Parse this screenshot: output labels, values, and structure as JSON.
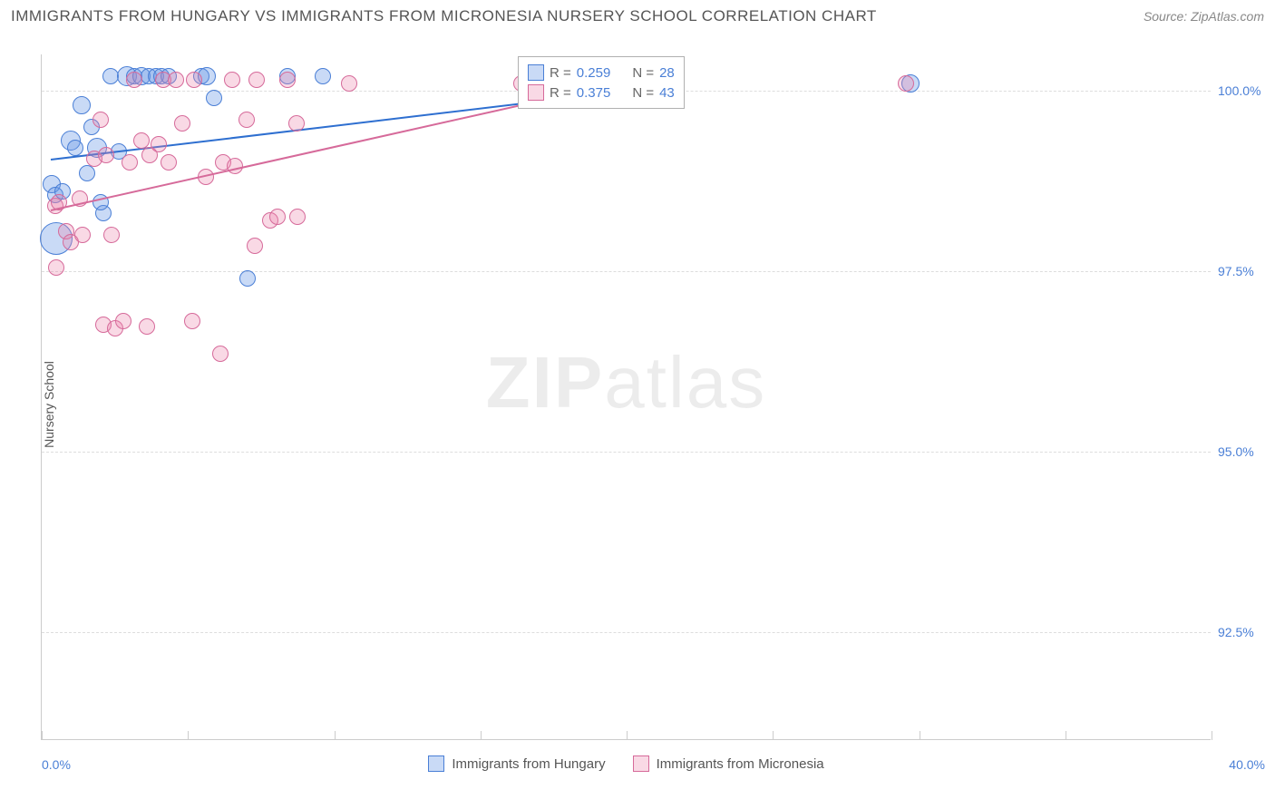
{
  "header": {
    "title": "IMMIGRANTS FROM HUNGARY VS IMMIGRANTS FROM MICRONESIA NURSERY SCHOOL CORRELATION CHART",
    "source_prefix": "Source: ",
    "source_name": "ZipAtlas.com"
  },
  "chart": {
    "type": "scatter",
    "ylabel": "Nursery School",
    "watermark_bold": "ZIP",
    "watermark_rest": "atlas",
    "xlim": [
      0,
      40
    ],
    "ylim": [
      91,
      100.5
    ],
    "xticks": [
      {
        "pos": 0.0,
        "label": "0.0%"
      },
      {
        "pos": 40.0,
        "label": "40.0%"
      }
    ],
    "xtick_marks": [
      0,
      5,
      10,
      15,
      20,
      25,
      30,
      35,
      40
    ],
    "yticks": [
      {
        "pos": 100.0,
        "label": "100.0%"
      },
      {
        "pos": 97.5,
        "label": "97.5%"
      },
      {
        "pos": 95.0,
        "label": "95.0%"
      },
      {
        "pos": 92.5,
        "label": "92.5%"
      }
    ],
    "background_color": "#ffffff",
    "grid_color": "#dddddd",
    "series": [
      {
        "name": "Immigrants from Hungary",
        "fill": "rgba(100,150,230,0.35)",
        "stroke": "#4a7fd6",
        "trend_color": "#2e6fd0",
        "trend": {
          "x1": 0.3,
          "y1": 99.05,
          "x2": 20.0,
          "y2": 100.0
        },
        "r": 0.259,
        "n": 28,
        "points": [
          {
            "x": 0.5,
            "y": 97.95,
            "r": 18
          },
          {
            "x": 0.35,
            "y": 98.7,
            "r": 10
          },
          {
            "x": 0.45,
            "y": 98.55,
            "r": 9
          },
          {
            "x": 0.7,
            "y": 98.6,
            "r": 9
          },
          {
            "x": 1.0,
            "y": 99.3,
            "r": 11
          },
          {
            "x": 1.15,
            "y": 99.2,
            "r": 9
          },
          {
            "x": 1.55,
            "y": 98.85,
            "r": 9
          },
          {
            "x": 1.35,
            "y": 99.8,
            "r": 10
          },
          {
            "x": 1.7,
            "y": 99.5,
            "r": 9
          },
          {
            "x": 1.9,
            "y": 99.2,
            "r": 11
          },
          {
            "x": 2.1,
            "y": 98.3,
            "r": 9
          },
          {
            "x": 2.35,
            "y": 100.2,
            "r": 9
          },
          {
            "x": 2.65,
            "y": 99.15,
            "r": 9
          },
          {
            "x": 2.9,
            "y": 100.2,
            "r": 11
          },
          {
            "x": 3.15,
            "y": 100.2,
            "r": 9
          },
          {
            "x": 3.4,
            "y": 100.2,
            "r": 10
          },
          {
            "x": 3.65,
            "y": 100.2,
            "r": 9
          },
          {
            "x": 3.9,
            "y": 100.2,
            "r": 9
          },
          {
            "x": 4.1,
            "y": 100.2,
            "r": 9
          },
          {
            "x": 4.35,
            "y": 100.2,
            "r": 9
          },
          {
            "x": 5.45,
            "y": 100.2,
            "r": 9
          },
          {
            "x": 5.65,
            "y": 100.2,
            "r": 10
          },
          {
            "x": 5.9,
            "y": 99.9,
            "r": 9
          },
          {
            "x": 7.05,
            "y": 97.4,
            "r": 9
          },
          {
            "x": 8.4,
            "y": 100.2,
            "r": 9
          },
          {
            "x": 9.6,
            "y": 100.2,
            "r": 9
          },
          {
            "x": 29.7,
            "y": 100.1,
            "r": 10
          },
          {
            "x": 2.0,
            "y": 98.45,
            "r": 9
          }
        ]
      },
      {
        "name": "Immigrants from Micronesia",
        "fill": "rgba(235,130,170,0.30)",
        "stroke": "#d66a9a",
        "trend_color": "#d66a9a",
        "trend": {
          "x1": 0.3,
          "y1": 98.35,
          "x2": 18.5,
          "y2": 100.0
        },
        "r": 0.375,
        "n": 43,
        "points": [
          {
            "x": 0.5,
            "y": 97.55,
            "r": 9
          },
          {
            "x": 0.45,
            "y": 98.4,
            "r": 9
          },
          {
            "x": 0.6,
            "y": 98.45,
            "r": 9
          },
          {
            "x": 0.85,
            "y": 98.05,
            "r": 9
          },
          {
            "x": 1.0,
            "y": 97.9,
            "r": 9
          },
          {
            "x": 1.3,
            "y": 98.5,
            "r": 9
          },
          {
            "x": 1.4,
            "y": 98.0,
            "r": 9
          },
          {
            "x": 1.8,
            "y": 99.05,
            "r": 9
          },
          {
            "x": 2.0,
            "y": 99.6,
            "r": 9
          },
          {
            "x": 2.2,
            "y": 99.1,
            "r": 9
          },
          {
            "x": 2.1,
            "y": 96.75,
            "r": 9
          },
          {
            "x": 2.4,
            "y": 98.0,
            "r": 9
          },
          {
            "x": 2.5,
            "y": 96.7,
            "r": 9
          },
          {
            "x": 2.8,
            "y": 96.8,
            "r": 9
          },
          {
            "x": 3.0,
            "y": 99.0,
            "r": 9
          },
          {
            "x": 3.15,
            "y": 100.15,
            "r": 9
          },
          {
            "x": 3.4,
            "y": 99.3,
            "r": 9
          },
          {
            "x": 3.6,
            "y": 96.73,
            "r": 9
          },
          {
            "x": 3.7,
            "y": 99.1,
            "r": 9
          },
          {
            "x": 4.0,
            "y": 99.25,
            "r": 9
          },
          {
            "x": 4.15,
            "y": 100.15,
            "r": 9
          },
          {
            "x": 4.35,
            "y": 99.0,
            "r": 9
          },
          {
            "x": 4.6,
            "y": 100.15,
            "r": 9
          },
          {
            "x": 4.8,
            "y": 99.55,
            "r": 9
          },
          {
            "x": 5.15,
            "y": 96.8,
            "r": 9
          },
          {
            "x": 5.2,
            "y": 100.15,
            "r": 9
          },
          {
            "x": 5.6,
            "y": 98.8,
            "r": 9
          },
          {
            "x": 6.1,
            "y": 96.35,
            "r": 9
          },
          {
            "x": 6.2,
            "y": 99.0,
            "r": 9
          },
          {
            "x": 6.6,
            "y": 98.95,
            "r": 9
          },
          {
            "x": 6.5,
            "y": 100.15,
            "r": 9
          },
          {
            "x": 7.0,
            "y": 99.6,
            "r": 9
          },
          {
            "x": 7.3,
            "y": 97.85,
            "r": 9
          },
          {
            "x": 7.35,
            "y": 100.15,
            "r": 9
          },
          {
            "x": 7.8,
            "y": 98.2,
            "r": 9
          },
          {
            "x": 8.05,
            "y": 98.25,
            "r": 9
          },
          {
            "x": 8.4,
            "y": 100.15,
            "r": 9
          },
          {
            "x": 8.7,
            "y": 99.55,
            "r": 9
          },
          {
            "x": 8.75,
            "y": 98.25,
            "r": 9
          },
          {
            "x": 10.5,
            "y": 100.1,
            "r": 9
          },
          {
            "x": 16.4,
            "y": 100.1,
            "r": 9
          },
          {
            "x": 18.0,
            "y": 100.0,
            "r": 9
          },
          {
            "x": 29.55,
            "y": 100.1,
            "r": 9
          }
        ]
      }
    ],
    "stats_legend": {
      "rows": [
        {
          "color_idx": 0,
          "r_label": "R = ",
          "r_value": "0.259",
          "n_label": "N = ",
          "n_value": "28"
        },
        {
          "color_idx": 1,
          "r_label": "R = ",
          "r_value": "0.375",
          "n_label": "N = ",
          "n_value": "43"
        }
      ]
    }
  }
}
